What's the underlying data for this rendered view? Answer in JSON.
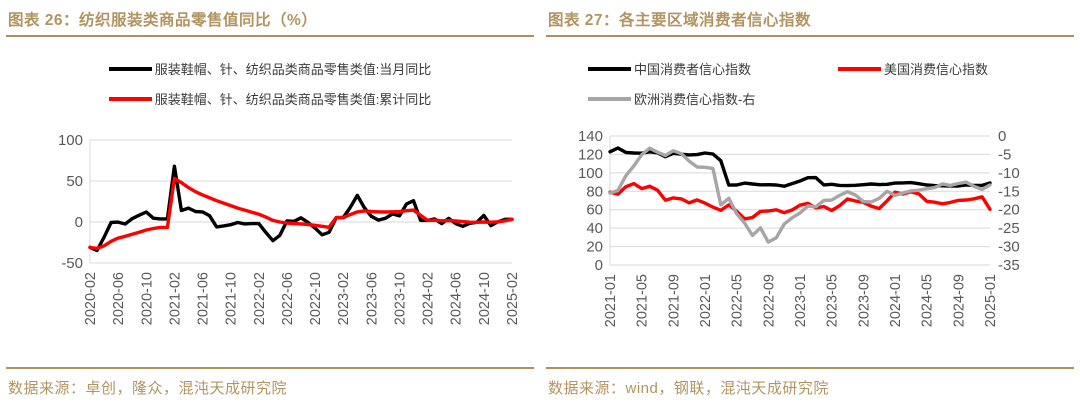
{
  "colors": {
    "accent_gold": "#b29460",
    "rule_gold": "#ad905a",
    "series_black": "#000000",
    "series_red": "#ff0000",
    "series_gray": "#a6a6a6",
    "tick_label": "#595959",
    "gridline": "#d9d9d9"
  },
  "panels": [
    {
      "title": "图表 26：纺织服装类商品零售值同比（%）",
      "source": "数据来源：卓创，隆众，混沌天成研究院",
      "legend": [
        {
          "label": "服装鞋帽、针、纺织品类商品零售类值:当月同比",
          "color": "#000000"
        },
        {
          "label": "服装鞋帽、针、纺织品类商品零售类值:累计同比",
          "color": "#ff0000"
        }
      ]
    },
    {
      "title": "图表 27：各主要区域消费者信心指数",
      "source": "数据来源：wind，钢联，混沌天成研究院",
      "legend": [
        {
          "label": "中国消费者信心指数",
          "color": "#000000"
        },
        {
          "label": "美国消费信心指数",
          "color": "#ff0000"
        },
        {
          "label": "欧洲消费信心指数-右",
          "color": "#a6a6a6"
        }
      ]
    }
  ],
  "chart_data": [
    {
      "type": "line",
      "title": "纺织服装类商品零售值同比（%）",
      "x": [
        "2020-02",
        "2020-03",
        "2020-04",
        "2020-05",
        "2020-06",
        "2020-07",
        "2020-08",
        "2020-09",
        "2020-10",
        "2020-11",
        "2020-12",
        "2021-01",
        "2021-02",
        "2021-03",
        "2021-04",
        "2021-05",
        "2021-06",
        "2021-07",
        "2021-08",
        "2021-09",
        "2021-10",
        "2021-11",
        "2021-12",
        "2022-01",
        "2022-02",
        "2022-03",
        "2022-04",
        "2022-05",
        "2022-06",
        "2022-07",
        "2022-08",
        "2022-09",
        "2022-10",
        "2022-11",
        "2022-12",
        "2023-01",
        "2023-02",
        "2023-03",
        "2023-04",
        "2023-05",
        "2023-06",
        "2023-07",
        "2023-08",
        "2023-09",
        "2023-10",
        "2023-11",
        "2023-12",
        "2024-01",
        "2024-02",
        "2024-03",
        "2024-04",
        "2024-05",
        "2024-06",
        "2024-07",
        "2024-08",
        "2024-09",
        "2024-10",
        "2024-11",
        "2024-12",
        "2025-01",
        "2025-02"
      ],
      "x_tick_step": 4,
      "ylim": [
        -50,
        100
      ],
      "yticks": [
        100,
        50,
        0,
        -50
      ],
      "grid": true,
      "legend_position": "top",
      "series": [
        {
          "name": "服装鞋帽、针、纺织品类商品零售类值:当月同比",
          "color": "#000000",
          "axis": "left",
          "values": [
            -31,
            -34.8,
            -18.5,
            -0.6,
            -0.1,
            -2.5,
            4.2,
            8.3,
            12.2,
            4.6,
            3.8,
            3.8,
            68,
            14,
            17,
            12.8,
            12.3,
            7.5,
            -6,
            -4.8,
            -3.3,
            -0.6,
            -2.3,
            -1.9,
            -1.9,
            -12.7,
            -22.8,
            -16.2,
            1.2,
            0.8,
            5.1,
            -0.5,
            -7.5,
            -15.6,
            -12.5,
            5.4,
            5.4,
            17.7,
            32.4,
            17.6,
            6.9,
            2.3,
            4.5,
            9.9,
            7.5,
            22,
            26,
            1.9,
            1.9,
            3.8,
            -2,
            4.4,
            -1.9,
            -5.2,
            -1.6,
            -0.4,
            8,
            -4.5,
            0.3,
            3.3,
            3.3
          ]
        },
        {
          "name": "服装鞋帽、针、纺织品类商品零售类值:累计同比",
          "color": "#ff0000",
          "axis": "left",
          "values": [
            -31,
            -32.2,
            -29,
            -23.5,
            -19.6,
            -17.5,
            -15,
            -12.4,
            -9.7,
            -7.9,
            -6.6,
            -6.6,
            53,
            48,
            42,
            37,
            33,
            29.5,
            26,
            23,
            20,
            17,
            14.5,
            12,
            9.5,
            6,
            2,
            0,
            -1.2,
            -1.8,
            -2.3,
            -3,
            -4,
            -5.3,
            -6.5,
            5.4,
            5.4,
            9,
            12.3,
            13.5,
            12.8,
            12.5,
            12.2,
            12.4,
            12.7,
            13.8,
            14.5,
            8,
            1.9,
            2.2,
            1.5,
            1.8,
            1.2,
            0.5,
            -0.3,
            -0.4,
            0,
            -0.2,
            0.3,
            1.5,
            3.3
          ]
        }
      ]
    },
    {
      "type": "line",
      "title": "各主要区域消费者信心指数",
      "x": [
        "2021-01",
        "2021-02",
        "2021-03",
        "2021-04",
        "2021-05",
        "2021-06",
        "2021-07",
        "2021-08",
        "2021-09",
        "2021-10",
        "2021-11",
        "2021-12",
        "2022-01",
        "2022-02",
        "2022-03",
        "2022-04",
        "2022-05",
        "2022-06",
        "2022-07",
        "2022-08",
        "2022-09",
        "2022-10",
        "2022-11",
        "2022-12",
        "2023-01",
        "2023-02",
        "2023-03",
        "2023-04",
        "2023-05",
        "2023-06",
        "2023-07",
        "2023-08",
        "2023-09",
        "2023-10",
        "2023-11",
        "2023-12",
        "2024-01",
        "2024-02",
        "2024-03",
        "2024-04",
        "2024-05",
        "2024-06",
        "2024-07",
        "2024-08",
        "2024-09",
        "2024-10",
        "2024-11",
        "2024-12",
        "2025-01"
      ],
      "x_tick_step": 4,
      "ylim_left": [
        0,
        140
      ],
      "yticks_left": [
        140,
        120,
        100,
        80,
        60,
        40,
        20,
        0
      ],
      "ylim_right": [
        -35,
        0
      ],
      "yticks_right": [
        0,
        -5,
        -10,
        -15,
        -20,
        -25,
        -30,
        -35
      ],
      "grid": true,
      "legend_position": "top",
      "series": [
        {
          "name": "中国消费者信心指数",
          "color": "#000000",
          "axis": "left",
          "values": [
            122.8,
            127,
            122.2,
            121.5,
            121.3,
            122.8,
            121.8,
            117.5,
            121.2,
            120.2,
            119.5,
            119.8,
            121.5,
            120.5,
            113.2,
            86.7,
            86.8,
            88.9,
            87.9,
            87,
            87.2,
            86.8,
            85.5,
            88.3,
            91.2,
            94.7,
            94.9,
            86.9,
            87.6,
            86.4,
            86.2,
            86.5,
            87.2,
            87.9,
            87.3,
            87.6,
            88.9,
            89.1,
            89.4,
            88.2,
            86.8,
            86.2,
            86,
            85.8,
            85.7,
            86.9,
            86.3,
            86.4,
            89
          ]
        },
        {
          "name": "美国消费信心指数",
          "color": "#ff0000",
          "axis": "left",
          "values": [
            79,
            76.8,
            84.9,
            88.3,
            82.9,
            85.5,
            81.2,
            70.3,
            72.8,
            71.7,
            67.4,
            70.6,
            67.2,
            62.8,
            59.4,
            65.2,
            58.4,
            50,
            51.5,
            58.2,
            58.6,
            59.9,
            56.8,
            59.7,
            64.9,
            67,
            62,
            63.5,
            59.2,
            64.4,
            71.6,
            69.5,
            68.1,
            63.8,
            61.3,
            69.7,
            79,
            76.9,
            79.4,
            77.2,
            69.1,
            68.2,
            66.4,
            67.9,
            70.1,
            70.5,
            71.8,
            74,
            60.5
          ]
        },
        {
          "name": "欧洲消费信心指数-右",
          "color": "#a6a6a6",
          "axis": "right",
          "values": [
            -15.5,
            -14.8,
            -10.8,
            -8.1,
            -5.1,
            -3.3,
            -4.4,
            -5.3,
            -4,
            -4.8,
            -6.8,
            -8.4,
            -8.5,
            -8.8,
            -18.7,
            -16.9,
            -21.1,
            -23.6,
            -27,
            -24.9,
            -28.8,
            -27.6,
            -23.9,
            -22.2,
            -20.9,
            -19,
            -19.2,
            -17.5,
            -17.4,
            -16.1,
            -15.1,
            -16,
            -17.8,
            -17.9,
            -16.9,
            -15,
            -16.1,
            -15.5,
            -14.9,
            -14.7,
            -14.3,
            -14,
            -13,
            -13.4,
            -12.9,
            -12.5,
            -13.7,
            -14.5,
            -13.3
          ]
        }
      ]
    }
  ]
}
